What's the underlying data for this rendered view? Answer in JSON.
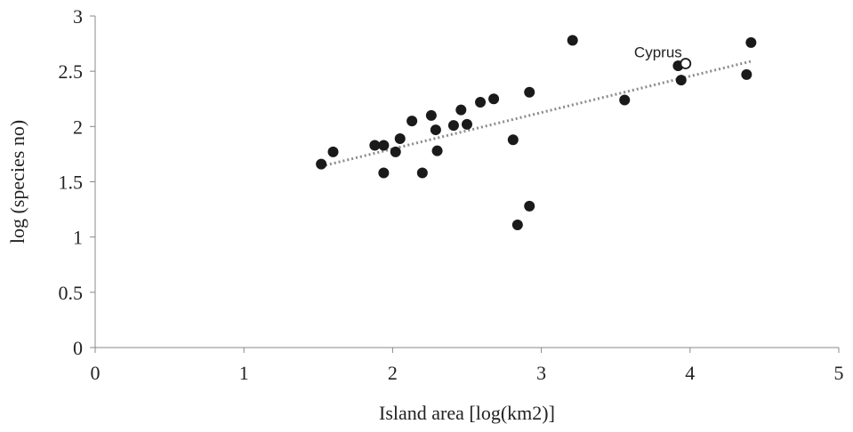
{
  "chart_data": {
    "type": "scatter",
    "title": "",
    "xlabel": "Island area [log(km2)]",
    "ylabel": "log (species no)",
    "xlim": [
      0,
      5
    ],
    "ylim": [
      0,
      3
    ],
    "x_ticks": [
      0,
      1,
      2,
      3,
      4,
      5
    ],
    "y_ticks": [
      0,
      0.5,
      1,
      1.5,
      2,
      2.5,
      3
    ],
    "grid": false,
    "series": [
      {
        "marker": "filled-circle",
        "color": "#1a1a1a",
        "points": [
          {
            "x": 1.52,
            "y": 1.66
          },
          {
            "x": 1.6,
            "y": 1.77
          },
          {
            "x": 1.88,
            "y": 1.83
          },
          {
            "x": 1.94,
            "y": 1.83
          },
          {
            "x": 1.94,
            "y": 1.58
          },
          {
            "x": 2.02,
            "y": 1.77
          },
          {
            "x": 2.05,
            "y": 1.89
          },
          {
            "x": 2.13,
            "y": 2.05
          },
          {
            "x": 2.2,
            "y": 1.58
          },
          {
            "x": 2.26,
            "y": 2.1
          },
          {
            "x": 2.29,
            "y": 1.97
          },
          {
            "x": 2.3,
            "y": 1.78
          },
          {
            "x": 2.41,
            "y": 2.01
          },
          {
            "x": 2.46,
            "y": 2.15
          },
          {
            "x": 2.5,
            "y": 2.02
          },
          {
            "x": 2.59,
            "y": 2.22
          },
          {
            "x": 2.68,
            "y": 2.25
          },
          {
            "x": 2.81,
            "y": 1.88
          },
          {
            "x": 2.84,
            "y": 1.11
          },
          {
            "x": 2.92,
            "y": 2.31
          },
          {
            "x": 2.92,
            "y": 1.28
          },
          {
            "x": 3.21,
            "y": 2.78
          },
          {
            "x": 3.56,
            "y": 2.24
          },
          {
            "x": 3.92,
            "y": 2.55
          },
          {
            "x": 3.94,
            "y": 2.42
          },
          {
            "x": 4.38,
            "y": 2.47
          },
          {
            "x": 4.41,
            "y": 2.76
          }
        ]
      },
      {
        "marker": "open-circle",
        "color": "#1a1a1a",
        "points": [
          {
            "x": 3.97,
            "y": 2.57,
            "label": "Cyprus"
          }
        ]
      }
    ],
    "trendline": {
      "style": "dotted",
      "color": "#8c8c8c",
      "from": {
        "x": 1.52,
        "y": 1.64
      },
      "to": {
        "x": 4.41,
        "y": 2.59
      }
    }
  }
}
